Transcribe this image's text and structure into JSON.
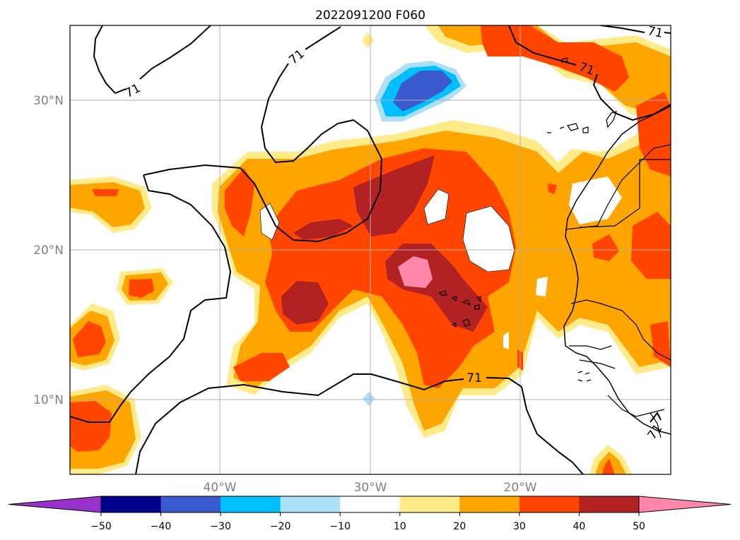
{
  "title": "2022091200 F060",
  "map": {
    "extent": {
      "lon_min": -50,
      "lon_max": -10,
      "lat_min": 5,
      "lat_max": 35
    },
    "gridlines": true,
    "lat_ticks": [
      {
        "value": 30,
        "label": "30°N"
      },
      {
        "value": 20,
        "label": "20°N"
      },
      {
        "value": 10,
        "label": "10°N"
      }
    ],
    "lon_ticks": [
      {
        "value": -40,
        "label": "40°W"
      },
      {
        "value": -30,
        "label": "30°W"
      },
      {
        "value": -20,
        "label": "20°W"
      }
    ],
    "contour_labels": [
      "71",
      "71",
      "71",
      "71",
      "71",
      "71"
    ]
  },
  "colorbar": {
    "tick_labels": [
      "−50",
      "−40",
      "−30",
      "−20",
      "−10",
      "10",
      "20",
      "30",
      "40",
      "50"
    ],
    "bins": [
      {
        "range": "< -50",
        "color": "#9932CC"
      },
      {
        "range": "-50 to -40",
        "color": "#00008B"
      },
      {
        "range": "-40 to -30",
        "color": "#3A5BCE"
      },
      {
        "range": "-30 to -20",
        "color": "#00BFFF"
      },
      {
        "range": "-20 to -10",
        "color": "#ADE0F8"
      },
      {
        "range": "-10 to 10",
        "color": "#FFFFFF"
      },
      {
        "range": "10 to 20",
        "color": "#FFEB8A"
      },
      {
        "range": "20 to 30",
        "color": "#FFA500"
      },
      {
        "range": "30 to 40",
        "color": "#FF4500"
      },
      {
        "range": "40 to 50",
        "color": "#B22222"
      },
      {
        "range": "> 50",
        "color": "#FF88AA"
      }
    ]
  }
}
